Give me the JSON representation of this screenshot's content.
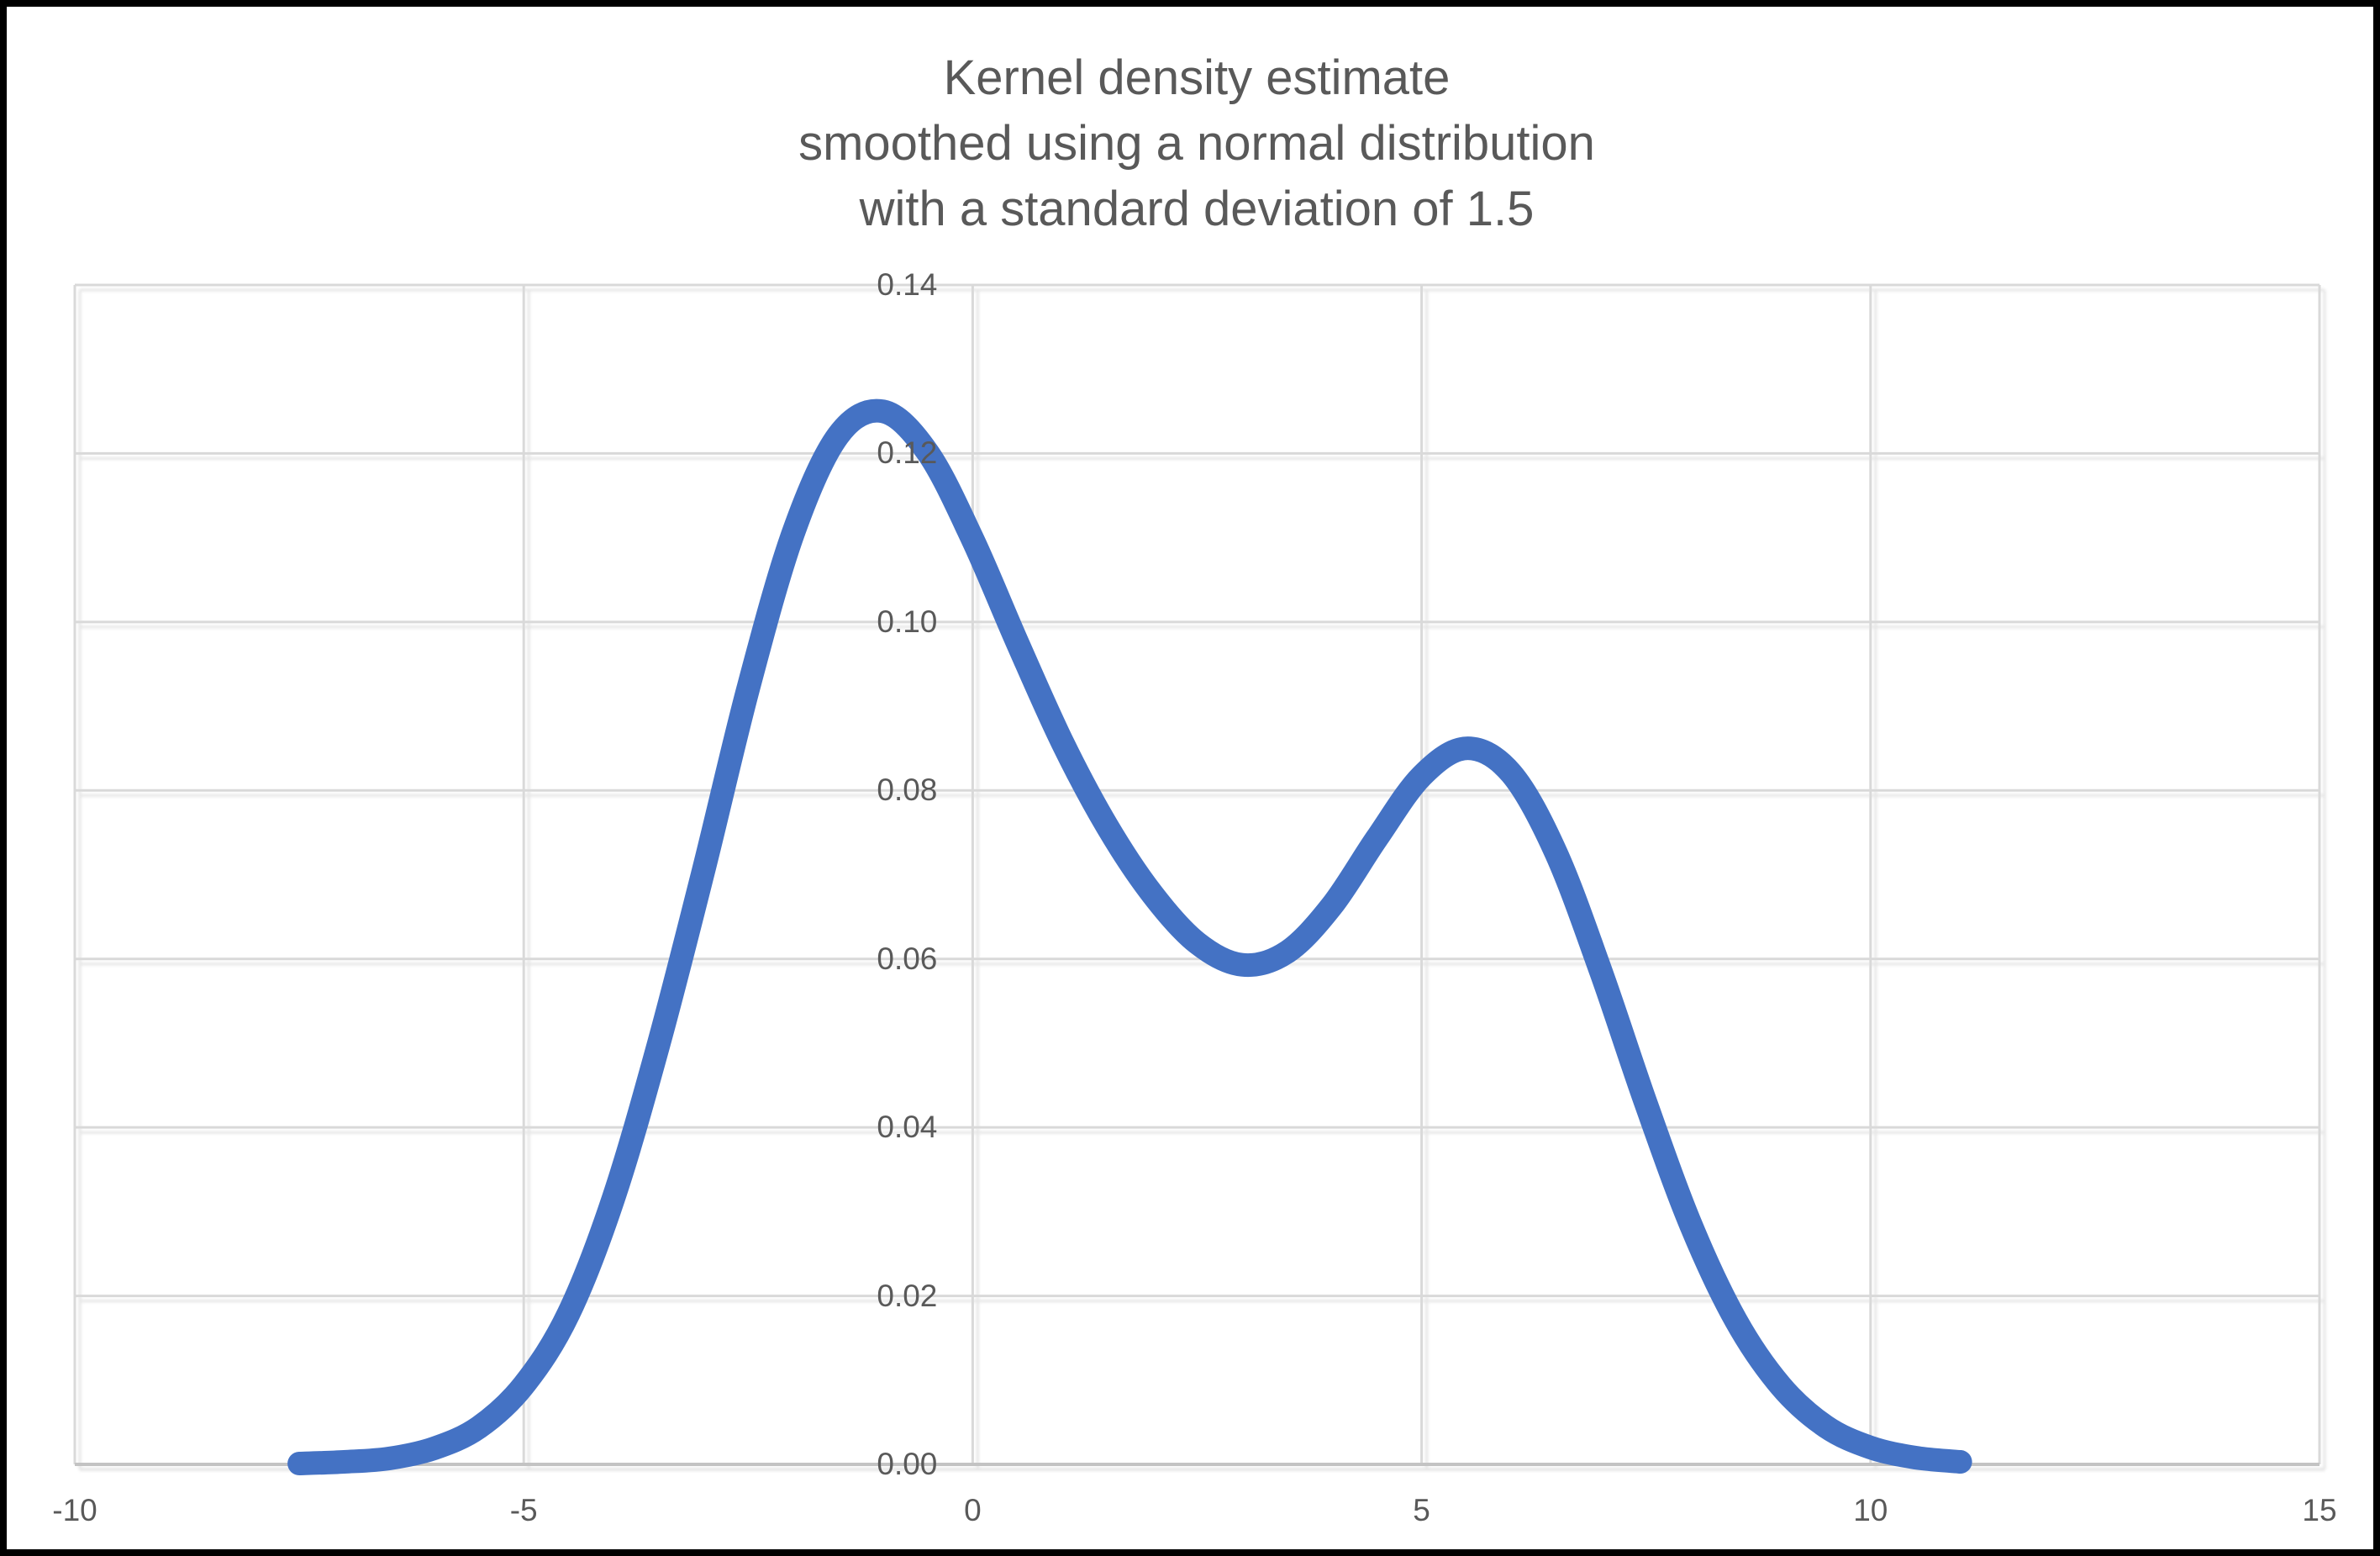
{
  "window": {
    "background": "#ffffff",
    "frame_color": "#000000"
  },
  "title": {
    "line1": "Kernel density estimate",
    "line2": "smoothed using a normal distribution",
    "line3": "with a standard deviation of 1.5"
  },
  "chart_data": {
    "type": "line",
    "title": "Kernel density estimate smoothed using a normal distribution with a standard deviation of 1.5",
    "xlabel": "",
    "ylabel": "",
    "xlim": [
      -10,
      15
    ],
    "ylim": [
      0,
      0.14
    ],
    "grid": true,
    "legend": false,
    "x_ticks": [
      {
        "label": "-10",
        "value": -10
      },
      {
        "label": "-5",
        "value": -5
      },
      {
        "label": "0",
        "value": 0
      },
      {
        "label": "5",
        "value": 5
      },
      {
        "label": "10",
        "value": 10
      },
      {
        "label": "15",
        "value": 15
      }
    ],
    "y_ticks": [
      {
        "label": "0.00",
        "value": 0.0
      },
      {
        "label": "0.02",
        "value": 0.02
      },
      {
        "label": "0.04",
        "value": 0.04
      },
      {
        "label": "0.06",
        "value": 0.06
      },
      {
        "label": "0.08",
        "value": 0.08
      },
      {
        "label": "0.10",
        "value": 0.1
      },
      {
        "label": "0.12",
        "value": 0.12
      },
      {
        "label": "0.14",
        "value": 0.14
      }
    ],
    "colors": {
      "line": "#4472C4",
      "grid": "#D9D9D9",
      "axis": "#C3C3C3",
      "tick_text": "#595959",
      "title_text": "#595959"
    },
    "line_width": 28,
    "series": [
      {
        "name": "Kernel density estimate",
        "color": "#4472C4",
        "points": [
          [
            -7.5,
            0.0001
          ],
          [
            -7.0,
            0.0003
          ],
          [
            -6.5,
            0.0007
          ],
          [
            -6.0,
            0.0019
          ],
          [
            -5.5,
            0.0044
          ],
          [
            -5.0,
            0.0094
          ],
          [
            -4.5,
            0.0179
          ],
          [
            -4.0,
            0.0316
          ],
          [
            -3.5,
            0.0498
          ],
          [
            -3.0,
            0.0704
          ],
          [
            -2.5,
            0.0921
          ],
          [
            -2.0,
            0.1105
          ],
          [
            -1.5,
            0.1221
          ],
          [
            -1.0,
            0.125
          ],
          [
            -0.5,
            0.1201
          ],
          [
            0.0,
            0.1098
          ],
          [
            0.5,
            0.0975
          ],
          [
            1.0,
            0.0857
          ],
          [
            1.5,
            0.0757
          ],
          [
            2.0,
            0.0677
          ],
          [
            2.5,
            0.0619
          ],
          [
            3.0,
            0.0593
          ],
          [
            3.5,
            0.0608
          ],
          [
            4.0,
            0.0663
          ],
          [
            4.5,
            0.0743
          ],
          [
            5.0,
            0.0817
          ],
          [
            5.5,
            0.085
          ],
          [
            6.0,
            0.082
          ],
          [
            6.5,
            0.0725
          ],
          [
            7.0,
            0.0584
          ],
          [
            7.5,
            0.0428
          ],
          [
            8.0,
            0.0284
          ],
          [
            8.5,
            0.0171
          ],
          [
            9.0,
            0.0093
          ],
          [
            9.5,
            0.0045
          ],
          [
            10.0,
            0.002
          ],
          [
            10.5,
            0.0008
          ],
          [
            11.0,
            0.0003
          ]
        ]
      }
    ]
  }
}
